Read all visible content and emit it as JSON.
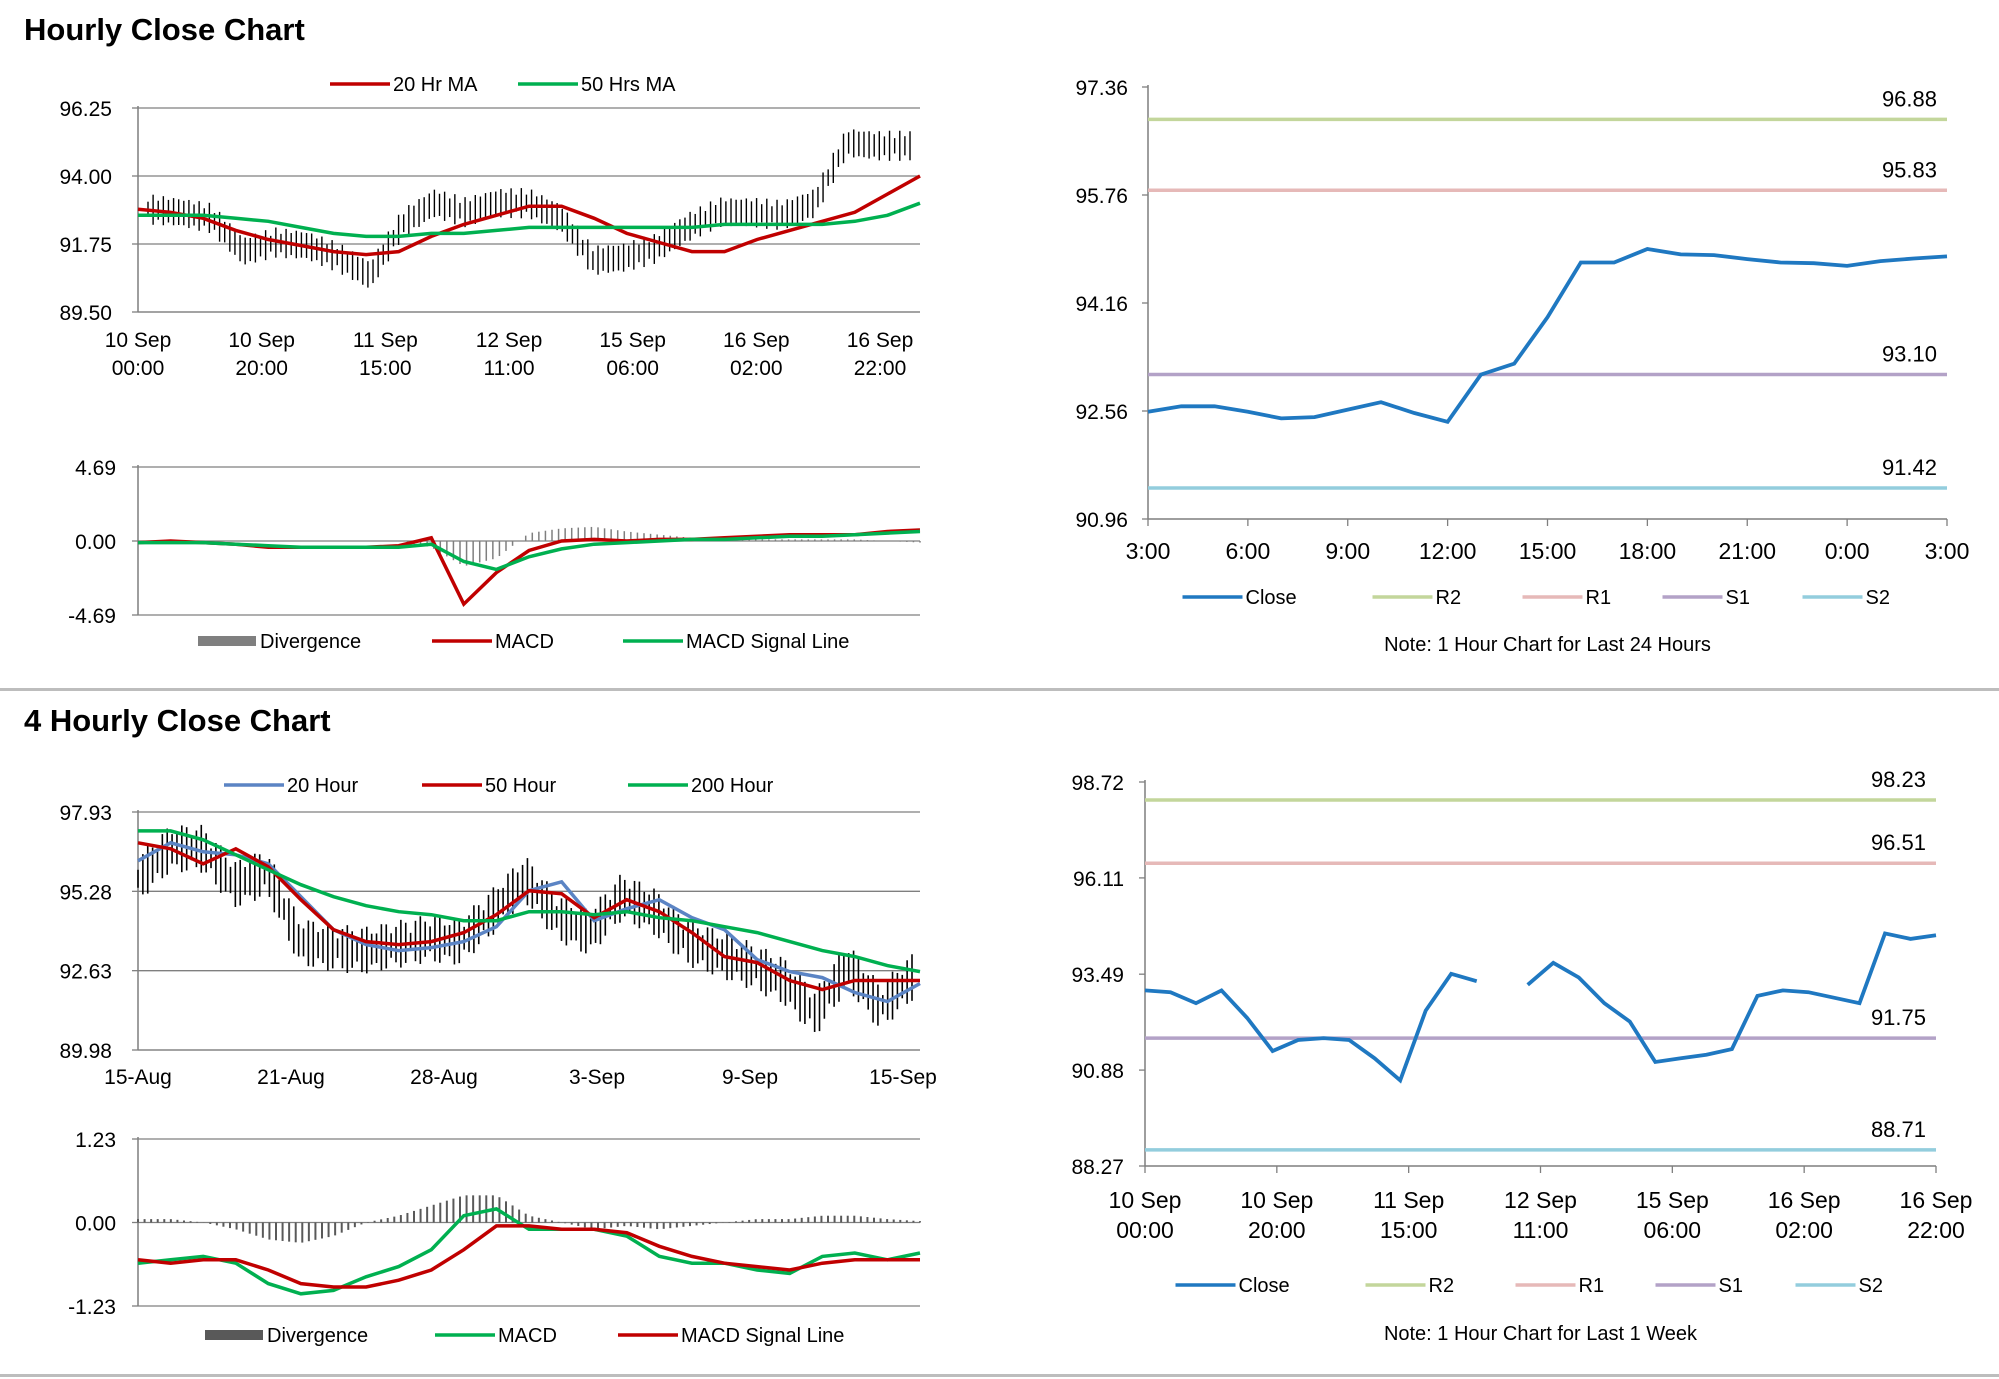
{
  "sections": [
    {
      "title": "Hourly Close Chart"
    },
    {
      "title": "4 Hourly Close Chart"
    }
  ],
  "colors": {
    "ma_red": "#c00000",
    "ma_green": "#00b050",
    "ma_blue": "#5b84c4",
    "close_blue": "#1f78c1",
    "r2": "#c3d69b",
    "r1": "#e6b9b8",
    "s1": "#b3a2c7",
    "s2": "#93cddd",
    "grid": "#7f7f7f",
    "divergence": "#7f7f7f",
    "candle": "#000000"
  },
  "chart_data": [
    {
      "id": "hourly-price",
      "type": "line",
      "description_series": [
        "20 Hr MA",
        "50 Hrs MA"
      ],
      "series": [
        {
          "name": "20 Hr MA",
          "color": "#c00000",
          "values": [
            92.9,
            92.8,
            92.6,
            92.2,
            91.9,
            91.7,
            91.5,
            91.4,
            91.5,
            92.0,
            92.4,
            92.7,
            93.0,
            93.0,
            92.6,
            92.1,
            91.8,
            91.5,
            91.5,
            91.9,
            92.2,
            92.5,
            92.8,
            93.4,
            94.0
          ]
        },
        {
          "name": "50 Hrs MA",
          "color": "#00b050",
          "values": [
            92.7,
            92.7,
            92.7,
            92.6,
            92.5,
            92.3,
            92.1,
            92.0,
            92.0,
            92.1,
            92.1,
            92.2,
            92.3,
            92.3,
            92.3,
            92.3,
            92.3,
            92.3,
            92.4,
            92.4,
            92.4,
            92.4,
            92.5,
            92.7,
            93.1
          ]
        },
        {
          "name": "Close",
          "color": "#000000",
          "values": [
            92.9,
            92.8,
            92.6,
            91.5,
            91.8,
            91.7,
            91.3,
            90.7,
            92.4,
            93.1,
            92.8,
            93.1,
            93.1,
            92.6,
            91.2,
            91.3,
            91.6,
            92.3,
            92.8,
            92.8,
            92.7,
            93.1,
            95.1,
            95.0,
            95.0
          ]
        }
      ],
      "ylim": [
        89.5,
        96.25
      ],
      "yticks": [
        "96.25",
        "94.00",
        "91.75",
        "89.50"
      ],
      "xticks": [
        [
          "10 Sep",
          "00:00"
        ],
        [
          "10 Sep",
          "20:00"
        ],
        [
          "11 Sep",
          "15:00"
        ],
        [
          "12 Sep",
          "11:00"
        ],
        [
          "15 Sep",
          "06:00"
        ],
        [
          "16 Sep",
          "02:00"
        ],
        [
          "16 Sep",
          "22:00"
        ]
      ],
      "legend": [
        "20 Hr MA",
        "50 Hrs MA"
      ],
      "legend_position": "top"
    },
    {
      "id": "hourly-macd",
      "type": "line",
      "series": [
        {
          "name": "Divergence",
          "color": "#7f7f7f",
          "values": [
            0,
            0,
            0,
            0,
            0,
            0,
            0,
            0,
            0,
            -0.4,
            -1.6,
            -1.1,
            0.5,
            0.8,
            0.9,
            0.6,
            0.4,
            0.2,
            0.1,
            0.1,
            0.1,
            0.1,
            0.1,
            0.0,
            -0.1
          ]
        },
        {
          "name": "MACD",
          "color": "#c00000",
          "values": [
            -0.1,
            0,
            -0.1,
            -0.2,
            -0.4,
            -0.4,
            -0.4,
            -0.4,
            -0.3,
            0.2,
            -4.0,
            -2.0,
            -0.6,
            0.0,
            0.1,
            0.0,
            0.1,
            0.1,
            0.2,
            0.3,
            0.4,
            0.4,
            0.4,
            0.6,
            0.7
          ]
        },
        {
          "name": "MACD Signal Line",
          "color": "#00b050",
          "values": [
            -0.1,
            -0.1,
            -0.1,
            -0.2,
            -0.3,
            -0.4,
            -0.4,
            -0.4,
            -0.4,
            -0.2,
            -1.3,
            -1.8,
            -1.0,
            -0.5,
            -0.2,
            -0.1,
            0.0,
            0.1,
            0.1,
            0.2,
            0.3,
            0.3,
            0.4,
            0.5,
            0.6
          ]
        }
      ],
      "ylim": [
        -4.69,
        4.69
      ],
      "yticks": [
        "4.69",
        "0.00",
        "-4.69"
      ],
      "legend": [
        "Divergence",
        "MACD",
        "MACD Signal Line"
      ],
      "legend_position": "bottom"
    },
    {
      "id": "hourly-close-24h",
      "type": "line",
      "series": [
        {
          "name": "Close",
          "color": "#1f78c1",
          "x": [
            "3:00",
            "4:00",
            "5:00",
            "6:00",
            "7:00",
            "8:00",
            "9:00",
            "10:00",
            "11:00",
            "12:00",
            "13:00",
            "14:00",
            "15:00",
            "16:00",
            "17:00",
            "18:00",
            "19:00",
            "20:00",
            "21:00",
            "22:00",
            "23:00",
            "0:00",
            "1:00",
            "2:00",
            "3:00"
          ],
          "values": [
            92.55,
            92.63,
            92.63,
            92.55,
            92.45,
            92.47,
            92.58,
            92.69,
            92.53,
            92.4,
            93.1,
            93.26,
            93.95,
            94.76,
            94.76,
            94.96,
            94.88,
            94.87,
            94.81,
            94.76,
            94.75,
            94.71,
            94.78,
            94.82,
            94.85
          ]
        }
      ],
      "levels": [
        {
          "name": "R2",
          "value": 96.88,
          "label": "96.88",
          "color": "#c3d69b"
        },
        {
          "name": "R1",
          "value": 95.83,
          "label": "95.83",
          "color": "#e6b9b8"
        },
        {
          "name": "S1",
          "value": 93.1,
          "label": "93.10",
          "color": "#b3a2c7"
        },
        {
          "name": "S2",
          "value": 91.42,
          "label": "91.42",
          "color": "#93cddd"
        }
      ],
      "ylim": [
        90.96,
        97.36
      ],
      "yticks": [
        "97.36",
        "95.76",
        "94.16",
        "92.56",
        "90.96"
      ],
      "xticks": [
        "3:00",
        "6:00",
        "9:00",
        "12:00",
        "15:00",
        "18:00",
        "21:00",
        "0:00",
        "3:00"
      ],
      "legend": [
        "Close",
        "R2",
        "R1",
        "S1",
        "S2"
      ],
      "legend_position": "bottom",
      "note": "Note: 1 Hour Chart for Last 24 Hours"
    },
    {
      "id": "four-hourly-price",
      "type": "line",
      "series": [
        {
          "name": "20 Hour",
          "color": "#5b84c4",
          "values": [
            96.3,
            96.9,
            96.6,
            96.5,
            96.2,
            95.1,
            94.0,
            93.5,
            93.3,
            93.4,
            93.6,
            94.1,
            95.3,
            95.6,
            94.3,
            94.7,
            95.0,
            94.4,
            94.0,
            93.0,
            92.6,
            92.4,
            91.9,
            91.6,
            92.2
          ]
        },
        {
          "name": "50 Hour",
          "color": "#c00000",
          "values": [
            96.9,
            96.7,
            96.2,
            96.7,
            96.1,
            95.0,
            94.0,
            93.6,
            93.5,
            93.6,
            93.9,
            94.5,
            95.3,
            95.2,
            94.4,
            95.0,
            94.6,
            93.9,
            93.1,
            92.9,
            92.3,
            92.0,
            92.3,
            92.3,
            92.3
          ]
        },
        {
          "name": "200 Hour",
          "color": "#00b050",
          "values": [
            97.3,
            97.3,
            97.0,
            96.5,
            96.0,
            95.5,
            95.1,
            94.8,
            94.6,
            94.5,
            94.3,
            94.3,
            94.6,
            94.6,
            94.5,
            94.6,
            94.4,
            94.3,
            94.1,
            93.9,
            93.6,
            93.3,
            93.1,
            92.8,
            92.6
          ]
        },
        {
          "name": "Close",
          "color": "#000000",
          "values": [
            95.7,
            96.7,
            96.7,
            95.5,
            95.9,
            93.6,
            93.4,
            93.3,
            93.5,
            93.7,
            93.6,
            94.6,
            95.7,
            94.4,
            93.9,
            95.1,
            94.6,
            93.6,
            93.2,
            92.8,
            92.3,
            91.2,
            92.8,
            91.4,
            92.4
          ]
        }
      ],
      "ylim": [
        89.98,
        97.93
      ],
      "yticks": [
        "97.93",
        "95.28",
        "92.63",
        "89.98"
      ],
      "xticks": [
        "15-Aug",
        "21-Aug",
        "28-Aug",
        "3-Sep",
        "9-Sep",
        "15-Sep"
      ],
      "legend": [
        "20 Hour",
        "50 Hour",
        "200 Hour"
      ],
      "legend_position": "top"
    },
    {
      "id": "four-hourly-macd",
      "type": "line",
      "series": [
        {
          "name": "Divergence",
          "color": "#595959",
          "values": [
            0.05,
            0.05,
            0.0,
            -0.1,
            -0.25,
            -0.3,
            -0.2,
            0.0,
            0.1,
            0.25,
            0.4,
            0.4,
            0.1,
            0.0,
            -0.1,
            -0.05,
            -0.1,
            -0.05,
            0.0,
            0.05,
            0.05,
            0.1,
            0.1,
            0.05,
            0.02
          ]
        },
        {
          "name": "MACD",
          "color": "#00b050",
          "values": [
            -0.6,
            -0.55,
            -0.5,
            -0.6,
            -0.9,
            -1.05,
            -1.0,
            -0.8,
            -0.65,
            -0.4,
            0.1,
            0.2,
            -0.1,
            -0.1,
            -0.1,
            -0.2,
            -0.5,
            -0.6,
            -0.6,
            -0.7,
            -0.75,
            -0.5,
            -0.45,
            -0.55,
            -0.45
          ]
        },
        {
          "name": "MACD Signal Line",
          "color": "#c00000",
          "values": [
            -0.55,
            -0.6,
            -0.55,
            -0.55,
            -0.7,
            -0.9,
            -0.95,
            -0.95,
            -0.85,
            -0.7,
            -0.4,
            -0.05,
            -0.05,
            -0.1,
            -0.1,
            -0.15,
            -0.35,
            -0.5,
            -0.6,
            -0.65,
            -0.7,
            -0.6,
            -0.55,
            -0.55,
            -0.55
          ]
        }
      ],
      "ylim": [
        -1.23,
        1.23
      ],
      "yticks": [
        "1.23",
        "0.00",
        "-1.23"
      ],
      "legend": [
        "Divergence",
        "MACD",
        "MACD Signal Line"
      ],
      "legend_position": "bottom"
    },
    {
      "id": "hourly-close-1w",
      "type": "line",
      "series": [
        {
          "name": "Close",
          "color": "#1f78c1",
          "values": [
            93.05,
            93.0,
            92.7,
            93.05,
            92.3,
            91.4,
            91.7,
            91.75,
            91.7,
            91.2,
            90.6,
            92.5,
            93.5,
            93.3,
            null,
            93.2,
            93.8,
            93.4,
            92.7,
            92.2,
            91.1,
            91.2,
            91.3,
            91.45,
            92.9,
            93.05,
            93.0,
            92.85,
            92.7,
            94.6,
            94.45,
            94.55
          ]
        }
      ],
      "levels": [
        {
          "name": "R2",
          "value": 98.23,
          "label": "98.23",
          "color": "#c3d69b"
        },
        {
          "name": "R1",
          "value": 96.51,
          "label": "96.51",
          "color": "#e6b9b8"
        },
        {
          "name": "S1",
          "value": 91.75,
          "label": "91.75",
          "color": "#b3a2c7"
        },
        {
          "name": "S2",
          "value": 88.71,
          "label": "88.71",
          "color": "#93cddd"
        }
      ],
      "ylim": [
        88.27,
        98.72
      ],
      "yticks": [
        "98.72",
        "96.11",
        "93.49",
        "90.88",
        "88.27"
      ],
      "xticks": [
        [
          "10 Sep",
          "00:00"
        ],
        [
          "10 Sep",
          "20:00"
        ],
        [
          "11 Sep",
          "15:00"
        ],
        [
          "12 Sep",
          "11:00"
        ],
        [
          "15 Sep",
          "06:00"
        ],
        [
          "16 Sep",
          "02:00"
        ],
        [
          "16 Sep",
          "22:00"
        ]
      ],
      "legend": [
        "Close",
        "R2",
        "R1",
        "S1",
        "S2"
      ],
      "legend_position": "bottom",
      "note": "Note: 1 Hour Chart for Last 1 Week"
    }
  ]
}
